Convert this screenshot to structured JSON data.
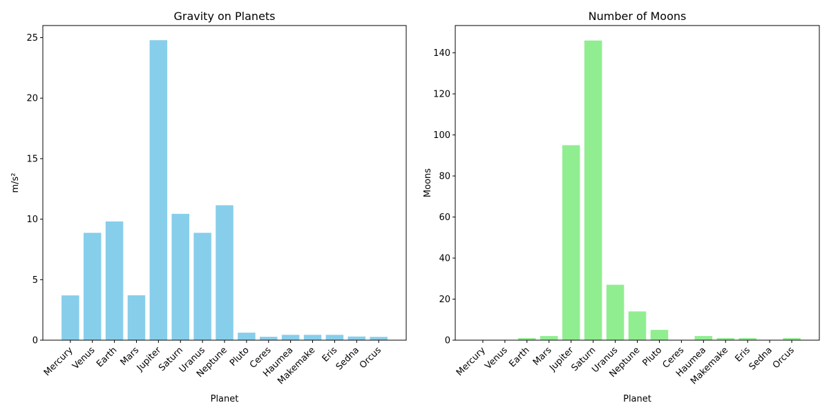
{
  "chart_data": [
    {
      "type": "bar",
      "title": "Gravity on Planets",
      "xlabel": "Planet",
      "ylabel": "m/s²",
      "categories": [
        "Mercury",
        "Venus",
        "Earth",
        "Mars",
        "Jupiter",
        "Saturn",
        "Uranus",
        "Neptune",
        "Pluto",
        "Ceres",
        "Haumea",
        "Makemake",
        "Eris",
        "Sedna",
        "Orcus"
      ],
      "values": [
        3.7,
        8.87,
        9.81,
        3.71,
        24.79,
        10.44,
        8.87,
        11.15,
        0.62,
        0.28,
        0.44,
        0.44,
        0.44,
        0.3,
        0.27
      ],
      "ylim": [
        0,
        26
      ],
      "yticks": [
        0,
        5,
        10,
        15,
        20,
        25
      ],
      "color": "#87ceeb",
      "grid": false,
      "xtick_rotation": 45
    },
    {
      "type": "bar",
      "title": "Number of Moons",
      "xlabel": "Planet",
      "ylabel": "Moons",
      "categories": [
        "Mercury",
        "Venus",
        "Earth",
        "Mars",
        "Jupiter",
        "Saturn",
        "Uranus",
        "Neptune",
        "Pluto",
        "Ceres",
        "Haumea",
        "Makemake",
        "Eris",
        "Sedna",
        "Orcus"
      ],
      "values": [
        0,
        0,
        1,
        2,
        95,
        146,
        27,
        14,
        5,
        0,
        2,
        1,
        1,
        0,
        1
      ],
      "ylim": [
        0,
        153.3
      ],
      "yticks": [
        0,
        20,
        40,
        60,
        80,
        100,
        120,
        140
      ],
      "color": "#90ee90",
      "grid": false,
      "xtick_rotation": 45
    }
  ]
}
